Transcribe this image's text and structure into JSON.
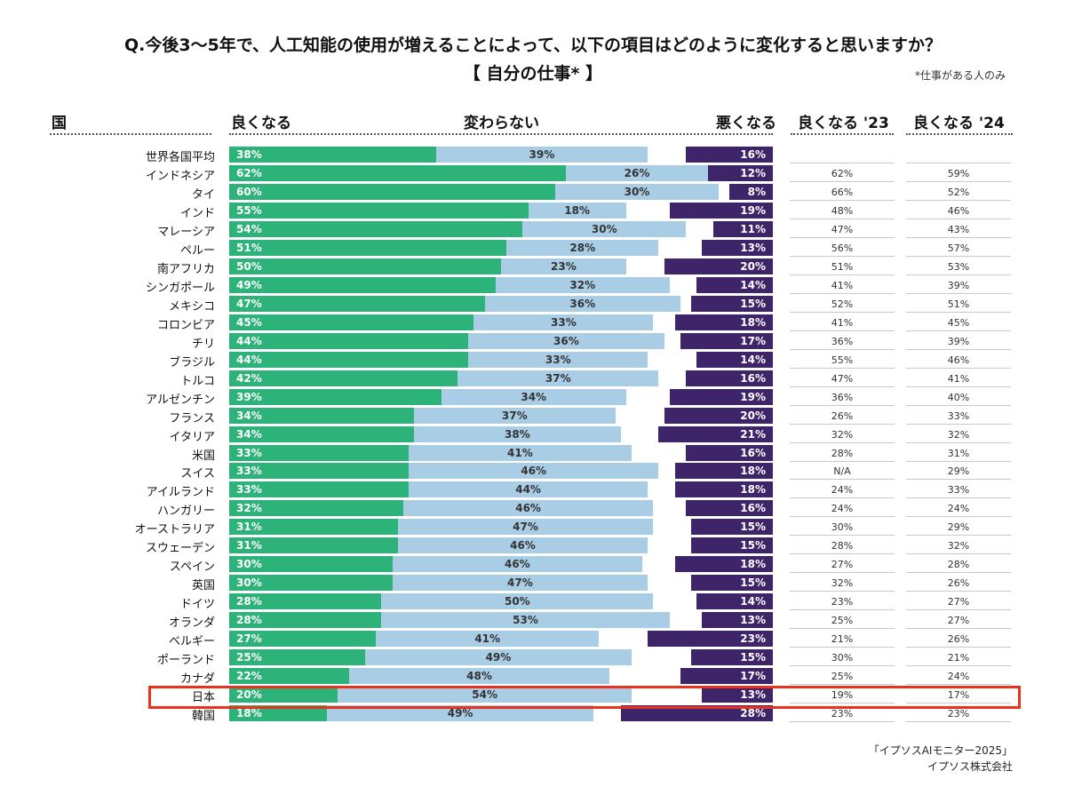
{
  "title": "Q.今後3〜5年で、人工知能の使用が増えることによって、以下の項目はどのように変化すると思いますか？",
  "subtitle": "【 自分の仕事* 】",
  "note": "*仕事がある人のみ",
  "headers": {
    "country": "国",
    "better": "良くなる",
    "same": "変わらない",
    "worse": "悪くなる",
    "better23": "良くなる '23",
    "better24": "良くなる '24"
  },
  "source": [
    "「イプソスAIモニター2025」",
    "イプソス株式会社"
  ],
  "highlight_country": "日本",
  "colors": {
    "better": "#2db27a",
    "same": "#a9cde5",
    "worse": "#3e2468",
    "highlight": "#e8321e"
  },
  "chart_data": {
    "type": "bar",
    "stacked": true,
    "orientation": "horizontal",
    "xlim": [
      0,
      100
    ],
    "categories": [
      "世界各国平均",
      "インドネシア",
      "タイ",
      "インド",
      "マレーシア",
      "ペルー",
      "南アフリカ",
      "シンガポール",
      "メキシコ",
      "コロンビア",
      "チリ",
      "ブラジル",
      "トルコ",
      "アルゼンチン",
      "フランス",
      "イタリア",
      "米国",
      "スイス",
      "アイルランド",
      "ハンガリー",
      "オーストラリア",
      "スウェーデン",
      "スペイン",
      "英国",
      "ドイツ",
      "オランダ",
      "ベルギー",
      "ポーランド",
      "カナダ",
      "日本",
      "韓国"
    ],
    "series": [
      {
        "name": "良くなる",
        "values": [
          38,
          62,
          60,
          55,
          54,
          51,
          50,
          49,
          47,
          45,
          44,
          44,
          42,
          39,
          34,
          34,
          33,
          33,
          33,
          32,
          31,
          31,
          30,
          30,
          28,
          28,
          27,
          25,
          22,
          20,
          18
        ]
      },
      {
        "name": "変わらない",
        "values": [
          39,
          26,
          30,
          18,
          30,
          28,
          23,
          32,
          36,
          33,
          36,
          33,
          37,
          34,
          37,
          38,
          41,
          46,
          44,
          46,
          47,
          46,
          46,
          47,
          50,
          53,
          41,
          49,
          48,
          54,
          49
        ]
      },
      {
        "name": "悪くなる",
        "values": [
          16,
          12,
          8,
          19,
          11,
          13,
          20,
          14,
          15,
          18,
          17,
          14,
          16,
          19,
          20,
          21,
          16,
          18,
          18,
          16,
          15,
          15,
          18,
          15,
          14,
          13,
          23,
          15,
          17,
          13,
          28
        ]
      }
    ],
    "table": {
      "better23": [
        "",
        "62%",
        "66%",
        "48%",
        "47%",
        "56%",
        "51%",
        "41%",
        "52%",
        "41%",
        "36%",
        "55%",
        "47%",
        "36%",
        "26%",
        "32%",
        "28%",
        "N/A",
        "24%",
        "24%",
        "30%",
        "28%",
        "27%",
        "32%",
        "23%",
        "25%",
        "21%",
        "30%",
        "25%",
        "19%",
        "23%"
      ],
      "better24": [
        "",
        "59%",
        "52%",
        "46%",
        "43%",
        "57%",
        "53%",
        "39%",
        "51%",
        "45%",
        "39%",
        "46%",
        "41%",
        "40%",
        "33%",
        "32%",
        "31%",
        "29%",
        "33%",
        "24%",
        "29%",
        "32%",
        "28%",
        "26%",
        "27%",
        "27%",
        "26%",
        "21%",
        "24%",
        "17%",
        "23%"
      ]
    }
  }
}
